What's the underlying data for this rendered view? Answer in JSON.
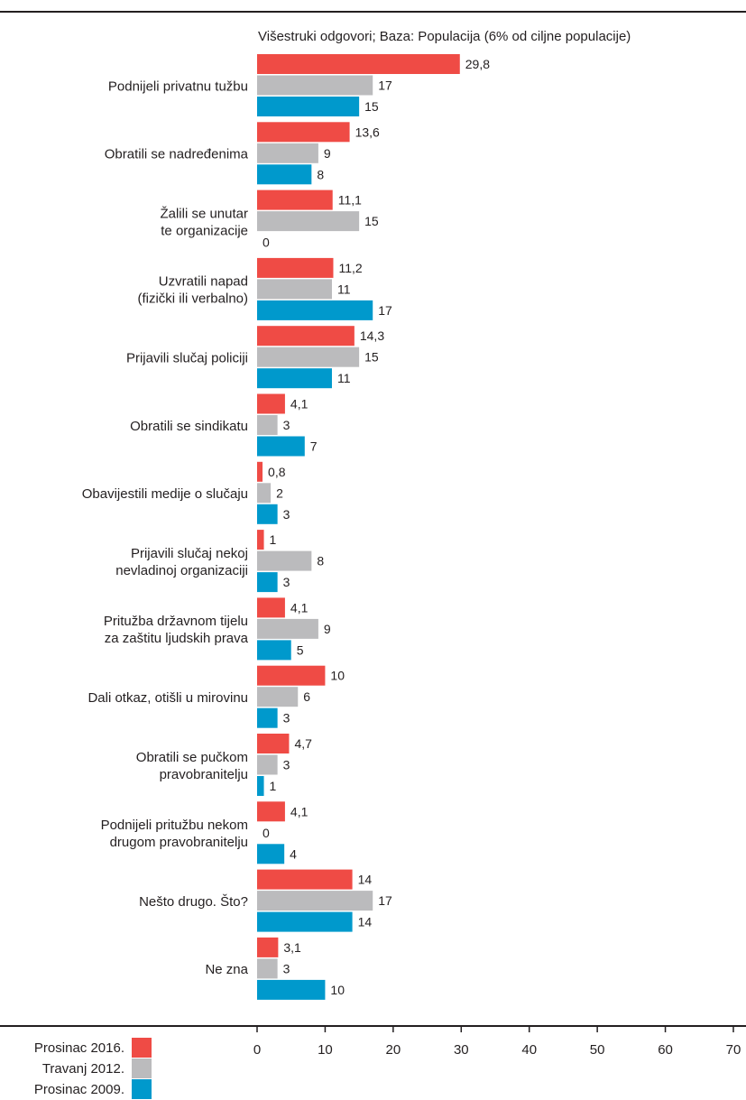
{
  "chart_data": {
    "type": "bar",
    "orientation": "horizontal",
    "subtitle": "Višestruki odgovori; Baza: Populacija (6% od ciljne populacije)",
    "categories": [
      [
        "Podnijeli privatnu tužbu"
      ],
      [
        "Obratili se nadređenima"
      ],
      [
        "Žalili se unutar",
        "te organizacije"
      ],
      [
        "Uzvratili napad",
        "(fizički ili verbalno)"
      ],
      [
        "Prijavili slučaj policiji"
      ],
      [
        "Obratili se sindikatu"
      ],
      [
        "Obavijestili medije o slučaju"
      ],
      [
        "Prijavili slučaj nekoj",
        "nevladinoj organizaciji"
      ],
      [
        "Pritužba državnom tijelu",
        "za zaštitu ljudskih prava"
      ],
      [
        "Dali otkaz, otišli u mirovinu"
      ],
      [
        "Obratili se pučkom",
        "pravobranitelju"
      ],
      [
        "Podnijeli pritužbu nekom",
        "drugom pravobranitelju"
      ],
      [
        "Nešto drugo. Što?"
      ],
      [
        "Ne zna"
      ]
    ],
    "series": [
      {
        "name": "Prosinac 2016.",
        "color": "#ef4b45",
        "values": [
          29.8,
          13.6,
          11.1,
          11.2,
          14.3,
          4.1,
          0.8,
          1,
          4.1,
          10,
          4.7,
          4.1,
          14,
          3.1
        ],
        "labels": [
          "29,8",
          "13,6",
          "11,1",
          "11,2",
          "14,3",
          "4,1",
          "0,8",
          "1",
          "4,1",
          "10",
          "4,7",
          "4,1",
          "14",
          "3,1"
        ]
      },
      {
        "name": "Travanj 2012.",
        "color": "#bbbbbd",
        "values": [
          17,
          9,
          15,
          11,
          15,
          3,
          2,
          8,
          9,
          6,
          3,
          0,
          17,
          3
        ],
        "labels": [
          "17",
          "9",
          "15",
          "11",
          "15",
          "3",
          "2",
          "8",
          "9",
          "6",
          "3",
          "0",
          "17",
          "3"
        ]
      },
      {
        "name": "Prosinac 2009.",
        "color": "#0099cc",
        "values": [
          15,
          8,
          0,
          17,
          11,
          7,
          3,
          3,
          5,
          3,
          1,
          4,
          14,
          10
        ],
        "labels": [
          "15",
          "8",
          "0",
          "17",
          "11",
          "7",
          "3",
          "3",
          "5",
          "3",
          "1",
          "4",
          "14",
          "10"
        ]
      }
    ],
    "xlim": [
      0,
      70
    ],
    "xticks": [
      "0",
      "10",
      "20",
      "30",
      "40",
      "50",
      "60",
      "70"
    ],
    "legend_position": "bottom-left",
    "grid": false
  }
}
